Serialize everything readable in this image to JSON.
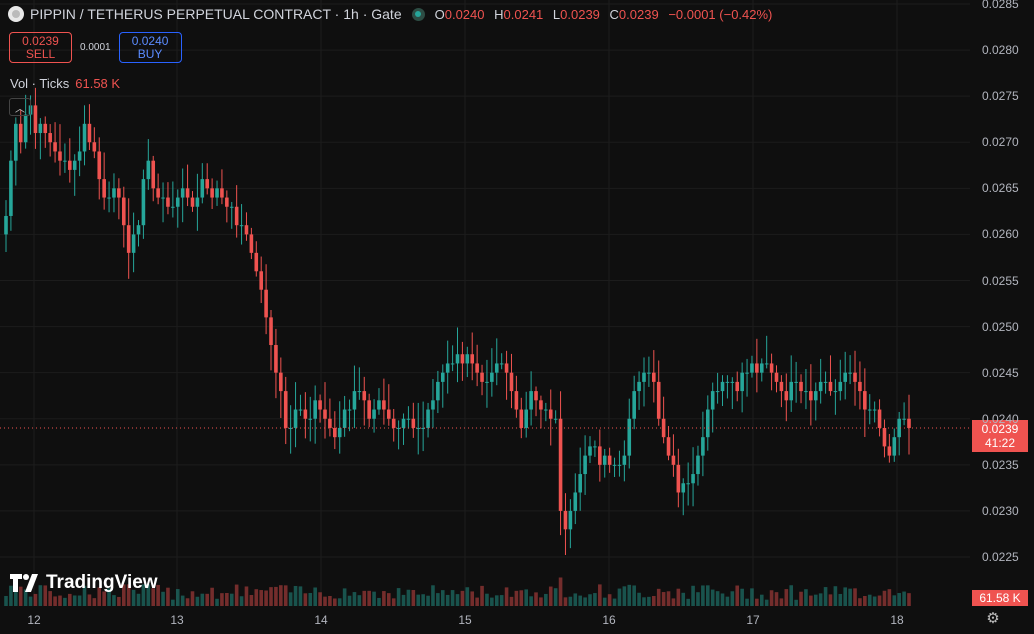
{
  "header": {
    "title": "PIPPIN / TETHERUS PERPETUAL CONTRACT · 1h · Gate",
    "ohlc": [
      {
        "k": "O",
        "v": "0.0240"
      },
      {
        "k": "H",
        "v": "0.0241"
      },
      {
        "k": "L",
        "v": "0.0239"
      },
      {
        "k": "C",
        "v": "0.0239"
      }
    ],
    "change": "−0.0001 (−0.42%)"
  },
  "trade": {
    "sell_price": "0.0239",
    "sell_label": "SELL",
    "spread": "0.0001",
    "buy_price": "0.0240",
    "buy_label": "BUY"
  },
  "volume": {
    "label": "Vol · Ticks",
    "value": "61.58 K"
  },
  "price_tag": {
    "price": "0.0239",
    "countdown": "41:22"
  },
  "volume_tag": "61.58 K",
  "brand": "TradingView",
  "colors": {
    "up": "#26a69a",
    "down": "#ef5350",
    "background": "#0f0f0f"
  },
  "chart_data": {
    "type": "candlestick",
    "interval": "1h",
    "x_ticks": [
      "12",
      "13",
      "14",
      "15",
      "16",
      "17",
      "18"
    ],
    "y_ticks": [
      "0.0285",
      "0.0280",
      "0.0275",
      "0.0270",
      "0.0265",
      "0.0260",
      "0.0255",
      "0.0250",
      "0.0245",
      "0.0240",
      "0.0235",
      "0.0230",
      "0.0225"
    ],
    "ylim": [
      0.0219,
      0.0286
    ],
    "last_price": 0.0239,
    "closes": [
      0.0262,
      0.0268,
      0.0272,
      0.027,
      0.0273,
      0.0274,
      0.0271,
      0.0272,
      0.0271,
      0.027,
      0.0269,
      0.0268,
      0.0268,
      0.0267,
      0.0268,
      0.0269,
      0.0272,
      0.027,
      0.0269,
      0.0266,
      0.0264,
      0.0264,
      0.0265,
      0.0264,
      0.0261,
      0.0258,
      0.026,
      0.0261,
      0.0266,
      0.0268,
      0.0265,
      0.0264,
      0.0264,
      0.0263,
      0.0263,
      0.0264,
      0.0265,
      0.0264,
      0.0263,
      0.0264,
      0.0266,
      0.0265,
      0.0264,
      0.0265,
      0.0264,
      0.0263,
      0.0263,
      0.0261,
      0.0261,
      0.026,
      0.0258,
      0.0256,
      0.0254,
      0.0251,
      0.0248,
      0.0245,
      0.0243,
      0.0239,
      0.0239,
      0.0241,
      0.0241,
      0.024,
      0.024,
      0.0242,
      0.0241,
      0.024,
      0.0239,
      0.0238,
      0.0239,
      0.0241,
      0.0241,
      0.0243,
      0.0243,
      0.0242,
      0.024,
      0.0241,
      0.0242,
      0.0241,
      0.024,
      0.0239,
      0.0239,
      0.024,
      0.024,
      0.0239,
      0.0239,
      0.0239,
      0.0241,
      0.0242,
      0.0244,
      0.0245,
      0.0246,
      0.0246,
      0.0247,
      0.0246,
      0.0247,
      0.0246,
      0.0245,
      0.0244,
      0.0244,
      0.0245,
      0.0246,
      0.0246,
      0.0245,
      0.0243,
      0.0241,
      0.0239,
      0.0241,
      0.0243,
      0.0242,
      0.0241,
      0.0241,
      0.024,
      0.024,
      0.023,
      0.0228,
      0.023,
      0.0232,
      0.0234,
      0.0236,
      0.0237,
      0.0237,
      0.0235,
      0.0236,
      0.0235,
      0.0235,
      0.0235,
      0.0236,
      0.024,
      0.0243,
      0.0244,
      0.0245,
      0.0245,
      0.0244,
      0.024,
      0.0238,
      0.0236,
      0.0235,
      0.0232,
      0.0233,
      0.0233,
      0.0234,
      0.0236,
      0.0238,
      0.0241,
      0.0243,
      0.0243,
      0.0244,
      0.0244,
      0.0244,
      0.0243,
      0.0245,
      0.0245,
      0.0246,
      0.0245,
      0.0246,
      0.0246,
      0.0245,
      0.0244,
      0.0243,
      0.0242,
      0.0244,
      0.0244,
      0.0243,
      0.0243,
      0.0242,
      0.0243,
      0.0244,
      0.0244,
      0.0243,
      0.0243,
      0.0244,
      0.0245,
      0.0245,
      0.0244,
      0.0243,
      0.0241,
      0.0241,
      0.0241,
      0.0239,
      0.0237,
      0.0236,
      0.0238,
      0.024,
      0.024,
      0.0239
    ]
  }
}
